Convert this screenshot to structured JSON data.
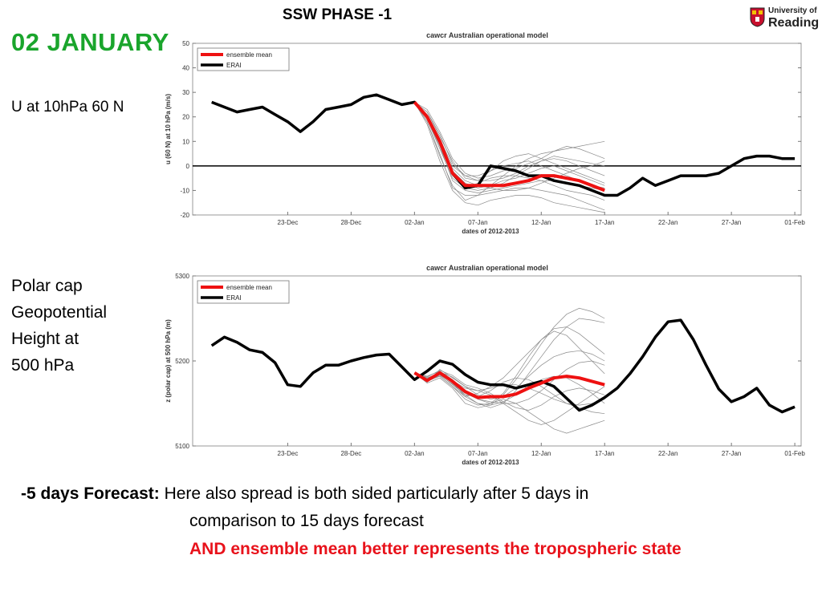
{
  "slide": {
    "title": "SSW PHASE -1",
    "date_heading": "02  JANUARY",
    "label_u": "U at 10hPa 60 N",
    "label_polar": [
      "Polar cap",
      "Geopotential",
      "Height at",
      "500 hPa"
    ],
    "logo": {
      "line1": "University of",
      "line2": "Reading"
    },
    "caption": {
      "bold_prefix": "-5 days Forecast:",
      "line1_rest": " Here also spread is both sided particularly after 5 days in",
      "line2": "comparison to 15 days forecast",
      "line3": "AND ensemble mean better represents the tropospheric state"
    },
    "colors": {
      "heading_green": "#1aa52c",
      "highlight_red": "#e8121b",
      "ensemble_mean": "#ee1111",
      "erai": "#000000",
      "member": "#888888"
    }
  },
  "chart_data": [
    {
      "type": "line",
      "title": "cawcr Australian operational model",
      "xlabel": "dates of 2012-2013",
      "ylabel": "u (60 N) at 10 hPa (m/s)",
      "x_ticks": [
        "23-Dec",
        "28-Dec",
        "02-Jan",
        "07-Jan",
        "12-Jan",
        "17-Jan",
        "22-Jan",
        "27-Jan",
        "01-Feb"
      ],
      "x_range_days": [
        -17.5,
        30.5
      ],
      "ylim": [
        -20,
        50
      ],
      "y_ticks": [
        -20,
        -10,
        0,
        10,
        20,
        30,
        40,
        50
      ],
      "zero_line": true,
      "legend": {
        "placement": "top-left",
        "entries": [
          "ensemble mean",
          "ERAI"
        ]
      },
      "forecast_window_days": [
        0,
        15
      ],
      "series": [
        {
          "name": "ERAI",
          "color": "#000000",
          "x": [
            -16,
            -15,
            -14,
            -13,
            -12,
            -11,
            -10,
            -9,
            -8,
            -7,
            -6,
            -5,
            -4,
            -3,
            -2,
            -1,
            0,
            1,
            2,
            3,
            4,
            5,
            6,
            7,
            8,
            9,
            10,
            11,
            12,
            13,
            14,
            15,
            16,
            17,
            18,
            19,
            20,
            21,
            22,
            23,
            24,
            25,
            26,
            27,
            28,
            29,
            30
          ],
          "y": [
            26,
            24,
            22,
            23,
            24,
            21,
            18,
            14,
            18,
            23,
            24,
            25,
            28,
            29,
            27,
            25,
            26,
            20,
            10,
            -3,
            -9,
            -8,
            0,
            -1,
            -2,
            -4,
            -4,
            -6,
            -7,
            -8,
            -10,
            -12,
            -12,
            -9,
            -5,
            -8,
            -6,
            -4,
            -4,
            -4,
            -3,
            0,
            3,
            4,
            4,
            3,
            3
          ]
        },
        {
          "name": "ensemble mean",
          "color": "#ee1111",
          "x": [
            0,
            1,
            2,
            3,
            4,
            5,
            6,
            7,
            8,
            9,
            10,
            11,
            12,
            13,
            14,
            15
          ],
          "y": [
            26,
            20,
            10,
            -3,
            -8,
            -8,
            -8,
            -8,
            -7,
            -6,
            -4,
            -4,
            -5,
            -6,
            -8,
            -10
          ]
        }
      ],
      "ensemble_members": [
        [
          26,
          18,
          4,
          -8,
          -14,
          -12,
          -8,
          -4,
          0,
          3,
          5,
          6,
          7,
          8,
          9,
          10
        ],
        [
          26,
          22,
          12,
          2,
          -5,
          -6,
          -2,
          2,
          4,
          5,
          3,
          1,
          -1,
          -3,
          -5,
          -7
        ],
        [
          26,
          19,
          8,
          -6,
          -10,
          -11,
          -10,
          -9,
          -8,
          -7,
          -6,
          -6,
          -7,
          -8,
          -9,
          -10
        ],
        [
          26,
          21,
          11,
          0,
          -4,
          -6,
          -6,
          -5,
          -3,
          0,
          2,
          4,
          3,
          2,
          1,
          0
        ],
        [
          26,
          17,
          2,
          -10,
          -15,
          -16,
          -14,
          -13,
          -12,
          -12,
          -13,
          -15,
          -16,
          -17,
          -18,
          -19
        ],
        [
          26,
          20,
          9,
          -2,
          -7,
          -9,
          -8,
          -6,
          -5,
          -3,
          -1,
          0,
          -2,
          -4,
          -6,
          -8
        ],
        [
          26,
          23,
          14,
          3,
          -3,
          -5,
          -4,
          -2,
          -1,
          1,
          3,
          6,
          8,
          7,
          5,
          3
        ],
        [
          26,
          18,
          5,
          -9,
          -12,
          -12,
          -11,
          -10,
          -9,
          -9,
          -10,
          -11,
          -12,
          -14,
          -16,
          -18
        ],
        [
          26,
          21,
          10,
          -1,
          -6,
          -8,
          -9,
          -10,
          -10,
          -9,
          -7,
          -5,
          -3,
          -1,
          0,
          2
        ],
        [
          26,
          19,
          7,
          -5,
          -9,
          -7,
          -5,
          -4,
          -4,
          -5,
          -6,
          -8,
          -10,
          -11,
          -12,
          -14
        ],
        [
          26,
          22,
          13,
          1,
          -4,
          -4,
          -2,
          0,
          1,
          2,
          0,
          -2,
          -4,
          -6,
          -8,
          -9
        ],
        [
          26,
          20,
          8,
          -4,
          -9,
          -10,
          -9,
          -7,
          -4,
          -1,
          2,
          3,
          2,
          0,
          -2,
          -4
        ]
      ]
    },
    {
      "type": "line",
      "title": "cawcr Australian operational model",
      "xlabel": "dates of 2012-2013",
      "ylabel": "z (polar cap) at 500 hPa (m)",
      "x_ticks": [
        "23-Dec",
        "28-Dec",
        "02-Jan",
        "07-Jan",
        "12-Jan",
        "17-Jan",
        "22-Jan",
        "27-Jan",
        "01-Feb"
      ],
      "x_range_days": [
        -17.5,
        30.5
      ],
      "ylim": [
        5100,
        5300
      ],
      "y_ticks": [
        5100,
        5200,
        5300
      ],
      "legend": {
        "placement": "top-left",
        "entries": [
          "ensemble mean",
          "ERAI"
        ]
      },
      "forecast_window_days": [
        0,
        15
      ],
      "series": [
        {
          "name": "ERAI",
          "color": "#000000",
          "x": [
            -16,
            -15,
            -14,
            -13,
            -12,
            -11,
            -10,
            -9,
            -8,
            -7,
            -6,
            -5,
            -4,
            -3,
            -2,
            -1,
            0,
            1,
            2,
            3,
            4,
            5,
            6,
            7,
            8,
            9,
            10,
            11,
            12,
            13,
            14,
            15,
            16,
            17,
            18,
            19,
            20,
            21,
            22,
            23,
            24,
            25,
            26,
            27,
            28,
            29,
            30
          ],
          "y": [
            5218,
            5228,
            5222,
            5213,
            5210,
            5198,
            5172,
            5170,
            5186,
            5195,
            5195,
            5200,
            5204,
            5207,
            5208,
            5193,
            5178,
            5188,
            5200,
            5196,
            5184,
            5175,
            5172,
            5172,
            5168,
            5172,
            5176,
            5170,
            5156,
            5142,
            5148,
            5157,
            5168,
            5185,
            5205,
            5228,
            5246,
            5248,
            5225,
            5195,
            5167,
            5152,
            5158,
            5168,
            5148,
            5140,
            5146
          ]
        },
        {
          "name": "ensemble mean",
          "color": "#ee1111",
          "x": [
            0,
            1,
            2,
            3,
            4,
            5,
            6,
            7,
            8,
            9,
            10,
            11,
            12,
            13,
            14,
            15
          ],
          "y": [
            5186,
            5177,
            5186,
            5176,
            5164,
            5157,
            5158,
            5158,
            5161,
            5168,
            5174,
            5180,
            5182,
            5180,
            5176,
            5172
          ]
        }
      ],
      "ensemble_members": [
        [
          5186,
          5180,
          5185,
          5175,
          5160,
          5150,
          5145,
          5150,
          5165,
          5185,
          5205,
          5225,
          5240,
          5250,
          5248,
          5245
        ],
        [
          5186,
          5175,
          5190,
          5180,
          5170,
          5165,
          5160,
          5150,
          5140,
          5130,
          5125,
          5130,
          5140,
          5150,
          5160,
          5170
        ],
        [
          5186,
          5178,
          5182,
          5170,
          5158,
          5162,
          5170,
          5180,
          5195,
          5210,
          5225,
          5235,
          5230,
          5215,
          5200,
          5185
        ],
        [
          5186,
          5182,
          5188,
          5178,
          5165,
          5155,
          5150,
          5155,
          5150,
          5140,
          5130,
          5120,
          5115,
          5120,
          5125,
          5130
        ],
        [
          5186,
          5176,
          5184,
          5172,
          5160,
          5158,
          5165,
          5175,
          5180,
          5178,
          5170,
          5160,
          5150,
          5145,
          5140,
          5138
        ],
        [
          5186,
          5179,
          5187,
          5181,
          5170,
          5160,
          5155,
          5158,
          5168,
          5182,
          5195,
          5205,
          5210,
          5212,
          5208,
          5200
        ],
        [
          5186,
          5174,
          5180,
          5168,
          5150,
          5145,
          5148,
          5160,
          5178,
          5198,
          5220,
          5240,
          5255,
          5262,
          5258,
          5250
        ],
        [
          5186,
          5181,
          5189,
          5183,
          5172,
          5168,
          5162,
          5152,
          5145,
          5142,
          5148,
          5158,
          5165,
          5168,
          5165,
          5160
        ],
        [
          5186,
          5177,
          5183,
          5173,
          5162,
          5155,
          5152,
          5150,
          5150,
          5155,
          5165,
          5178,
          5190,
          5198,
          5200,
          5195
        ],
        [
          5186,
          5180,
          5186,
          5174,
          5158,
          5150,
          5148,
          5152,
          5160,
          5170,
          5178,
          5182,
          5180,
          5172,
          5162,
          5150
        ],
        [
          5186,
          5178,
          5185,
          5177,
          5168,
          5165,
          5168,
          5172,
          5172,
          5168,
          5162,
          5155,
          5150,
          5148,
          5150,
          5155
        ],
        [
          5186,
          5176,
          5182,
          5170,
          5155,
          5148,
          5150,
          5162,
          5182,
          5205,
          5225,
          5238,
          5240,
          5232,
          5220,
          5208
        ]
      ]
    }
  ]
}
